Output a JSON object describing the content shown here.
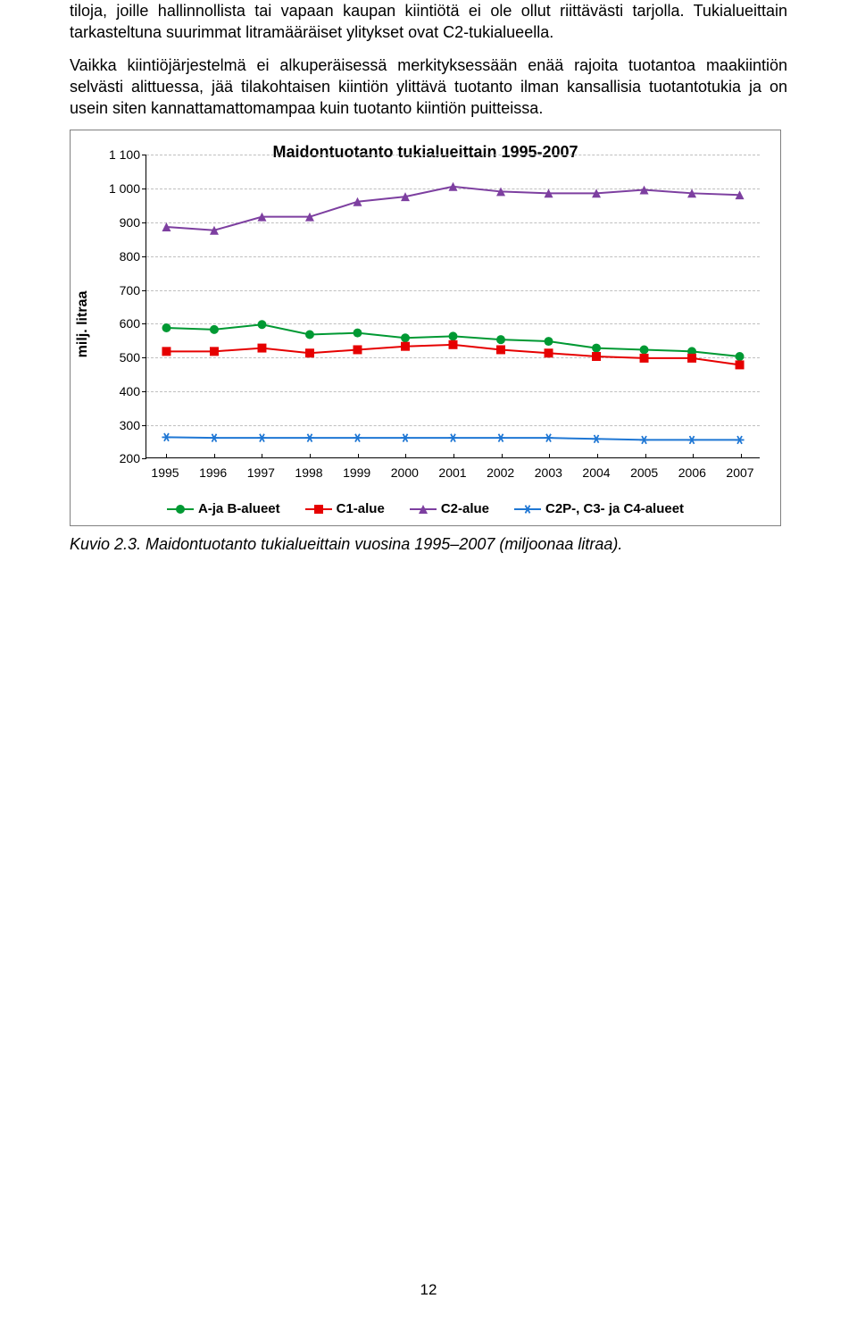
{
  "paragraphs": [
    "tiloja, joille hallinnollista tai vapaan kaupan kiintiötä ei ole ollut riittävästi tarjolla. Tukialueittain tarkasteltuna suurimmat litramääräiset ylitykset ovat C2-tukialueella.",
    "Vaikka kiintiöjärjestelmä ei alkuperäisessä merkityksessään enää rajoita tuotantoa maakiintiön selvästi alittuessa, jää tilakohtaisen kiintiön ylittävä tuotanto ilman kansallisia tuotantotukia ja on usein siten kannattamattomampaa kuin tuotanto kiintiön puitteissa."
  ],
  "chart": {
    "type": "line",
    "title": "Maidontuotanto tukialueittain 1995-2007",
    "ylabel": "milj. litraa",
    "background_color": "#ffffff",
    "grid_color": "#bfbfbf",
    "ylim": [
      200,
      1100
    ],
    "ytick_step": 100,
    "yticks": [
      200,
      300,
      400,
      500,
      600,
      700,
      800,
      900,
      1000,
      1100
    ],
    "x_categories": [
      "1995",
      "1996",
      "1997",
      "1998",
      "1999",
      "2000",
      "2001",
      "2002",
      "2003",
      "2004",
      "2005",
      "2006",
      "2007"
    ],
    "line_width": 2,
    "marker_size": 10,
    "series": [
      {
        "name": "A-ja B-alueet",
        "color": "#009933",
        "marker": "circle",
        "values": [
          585,
          580,
          595,
          565,
          570,
          555,
          560,
          550,
          545,
          525,
          520,
          515,
          500
        ]
      },
      {
        "name": "C1-alue",
        "color": "#e60000",
        "marker": "square",
        "values": [
          515,
          515,
          525,
          510,
          520,
          530,
          535,
          520,
          510,
          500,
          495,
          495,
          475
        ]
      },
      {
        "name": "C2-alue",
        "color": "#7d3fa0",
        "marker": "triangle",
        "values": [
          885,
          875,
          915,
          915,
          960,
          975,
          1005,
          990,
          985,
          985,
          995,
          985,
          980
        ]
      },
      {
        "name": "C2P-, C3- ja C4-alueet",
        "color": "#1f77d4",
        "marker": "star",
        "values": [
          260,
          258,
          258,
          258,
          258,
          258,
          258,
          258,
          258,
          255,
          252,
          252,
          252
        ]
      }
    ]
  },
  "caption": "Kuvio 2.3. Maidontuotanto tukialueittain vuosina 1995–2007 (miljoonaa litraa).",
  "page_number": "12"
}
